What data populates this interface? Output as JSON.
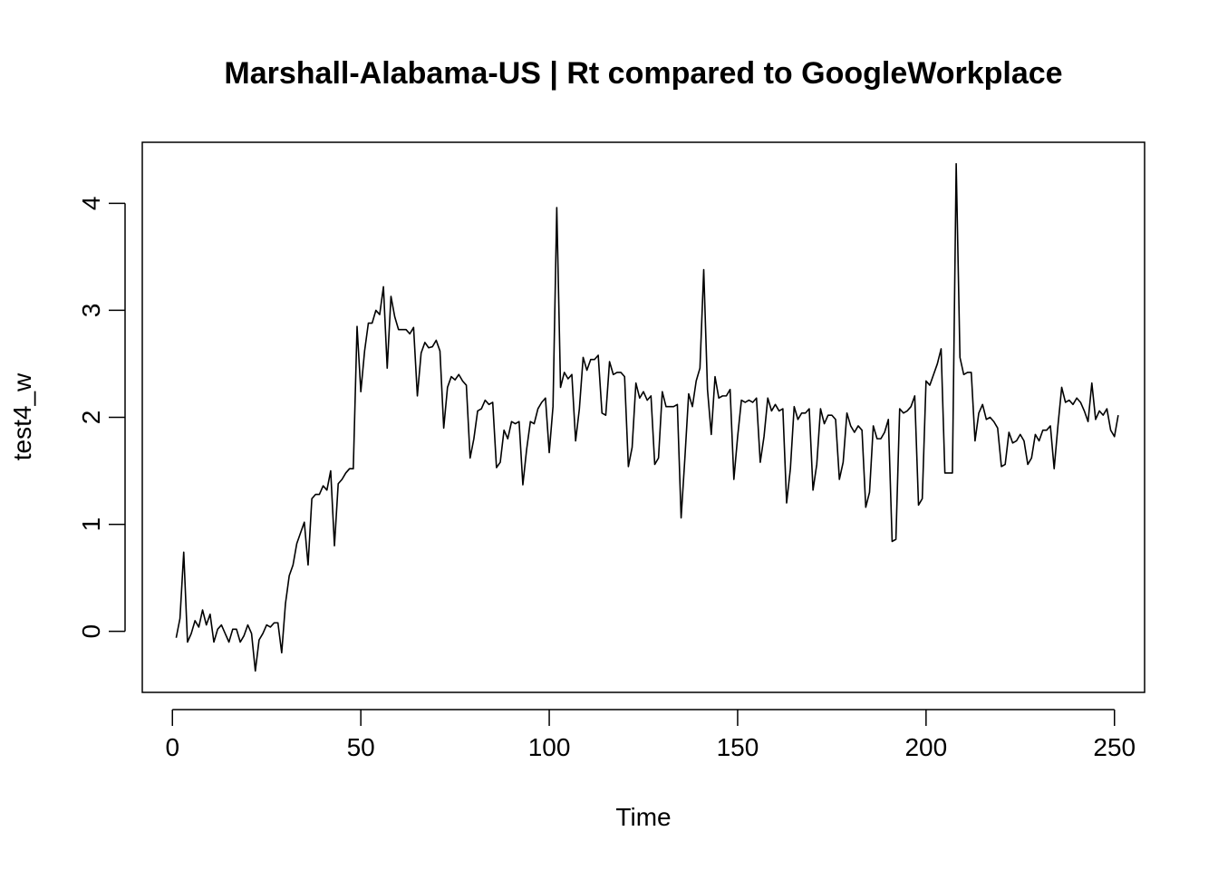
{
  "chart_data": {
    "type": "line",
    "title": "Marshall-Alabama-US | Rt compared to GoogleWorkplace",
    "xlabel": "Time",
    "ylabel": "test4_w",
    "xlim": [
      -8,
      258
    ],
    "ylim": [
      -0.57,
      4.57
    ],
    "x_ticks": [
      0,
      50,
      100,
      150,
      200,
      250
    ],
    "y_ticks": [
      0,
      1,
      2,
      3,
      4
    ],
    "grid": false,
    "legend": "none",
    "line_color": "#000000",
    "x_start": 1,
    "values": [
      -0.06,
      0.12,
      0.74,
      -0.1,
      -0.02,
      0.1,
      0.04,
      0.2,
      0.06,
      0.16,
      -0.1,
      0.02,
      0.06,
      -0.02,
      -0.1,
      0.02,
      0.02,
      -0.1,
      -0.04,
      0.06,
      -0.02,
      -0.37,
      -0.08,
      -0.02,
      0.06,
      0.04,
      0.08,
      0.08,
      -0.2,
      0.26,
      0.52,
      0.62,
      0.82,
      0.92,
      1.02,
      0.62,
      1.24,
      1.28,
      1.28,
      1.36,
      1.32,
      1.5,
      0.8,
      1.38,
      1.42,
      1.48,
      1.52,
      1.52,
      2.85,
      2.24,
      2.62,
      2.88,
      2.88,
      3.0,
      2.96,
      3.22,
      2.46,
      3.13,
      2.94,
      2.82,
      2.82,
      2.82,
      2.78,
      2.84,
      2.2,
      2.6,
      2.7,
      2.65,
      2.66,
      2.72,
      2.62,
      1.9,
      2.28,
      2.38,
      2.35,
      2.4,
      2.34,
      2.3,
      1.62,
      1.8,
      2.06,
      2.08,
      2.16,
      2.12,
      2.14,
      1.53,
      1.58,
      1.88,
      1.8,
      1.96,
      1.94,
      1.96,
      1.37,
      1.7,
      1.96,
      1.94,
      2.08,
      2.14,
      2.18,
      1.67,
      2.1,
      3.96,
      2.28,
      2.42,
      2.36,
      2.4,
      1.78,
      2.08,
      2.56,
      2.44,
      2.54,
      2.54,
      2.58,
      2.04,
      2.02,
      2.52,
      2.4,
      2.42,
      2.42,
      2.38,
      1.54,
      1.72,
      2.32,
      2.18,
      2.24,
      2.16,
      2.2,
      1.56,
      1.62,
      2.24,
      2.1,
      2.1,
      2.1,
      2.12,
      1.06,
      1.62,
      2.22,
      2.1,
      2.34,
      2.46,
      3.38,
      2.26,
      1.84,
      2.38,
      2.18,
      2.2,
      2.2,
      2.26,
      1.42,
      1.82,
      2.16,
      2.14,
      2.16,
      2.14,
      2.18,
      1.58,
      1.82,
      2.18,
      2.06,
      2.12,
      2.06,
      2.08,
      1.2,
      1.52,
      2.1,
      1.98,
      2.04,
      2.04,
      2.08,
      1.32,
      1.56,
      2.08,
      1.94,
      2.02,
      2.02,
      1.98,
      1.42,
      1.58,
      2.04,
      1.92,
      1.86,
      1.92,
      1.88,
      1.16,
      1.3,
      1.92,
      1.8,
      1.8,
      1.86,
      1.98,
      0.84,
      0.86,
      2.08,
      2.04,
      2.06,
      2.1,
      2.2,
      1.18,
      1.24,
      2.34,
      2.3,
      2.4,
      2.5,
      2.64,
      1.48,
      1.48,
      1.48,
      4.37,
      2.56,
      2.4,
      2.42,
      2.42,
      1.78,
      2.04,
      2.12,
      1.98,
      2.0,
      1.96,
      1.9,
      1.54,
      1.56,
      1.86,
      1.76,
      1.78,
      1.84,
      1.78,
      1.56,
      1.62,
      1.84,
      1.78,
      1.88,
      1.88,
      1.92,
      1.52,
      1.92,
      2.28,
      2.14,
      2.16,
      2.12,
      2.18,
      2.14,
      2.06,
      1.96,
      2.32,
      1.98,
      2.06,
      2.02,
      2.08,
      1.88,
      1.82,
      2.02
    ]
  }
}
